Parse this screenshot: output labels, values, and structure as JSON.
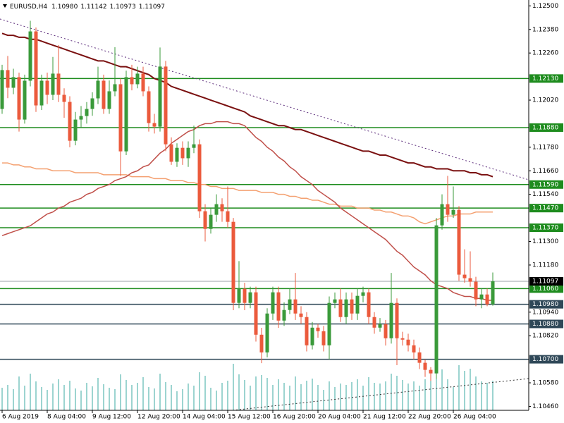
{
  "chart_data": {
    "type": "candlestick",
    "title": "EURUSD,H4",
    "title_values": [
      "1.10980",
      "1.11142",
      "1.10973",
      "1.11097"
    ],
    "categories": [
      "6 Aug 2019",
      null,
      null,
      null,
      null,
      null,
      null,
      null,
      "8 Aug 04:00",
      null,
      null,
      null,
      null,
      null,
      null,
      null,
      "9 Aug 12:00",
      null,
      null,
      null,
      null,
      null,
      null,
      null,
      "12 Aug 20:00",
      null,
      null,
      null,
      null,
      null,
      null,
      null,
      "14 Aug 04:00",
      null,
      null,
      null,
      null,
      null,
      null,
      null,
      "15 Aug 12:00",
      null,
      null,
      null,
      null,
      null,
      null,
      null,
      "16 Aug 20:00",
      null,
      null,
      null,
      null,
      null,
      null,
      null,
      "20 Aug 04:00",
      null,
      null,
      null,
      null,
      null,
      null,
      null,
      "21 Aug 12:00",
      null,
      null,
      null,
      null,
      null,
      null,
      null,
      "22 Aug 20:00",
      null,
      null,
      null,
      null,
      null,
      null,
      null,
      "26 Aug 04:00",
      null,
      null,
      null,
      null,
      null,
      null,
      null
    ],
    "open": [
      1.11975,
      1.12173,
      1.12083,
      1.12137,
      1.11921,
      1.12119,
      1.1237,
      1.11993,
      1.12119,
      1.12047,
      1.12155,
      1.12047,
      1.12011,
      1.11813,
      1.11921,
      1.11939,
      1.11975,
      1.12029,
      1.12119,
      1.11975,
      1.12065,
      1.12101,
      1.11759,
      1.12137,
      1.12101,
      1.12155,
      1.12065,
      1.11903,
      1.11885,
      1.12191,
      1.11795,
      1.11706,
      1.11777,
      1.11724,
      1.11777,
      1.11795,
      1.11454,
      1.11364,
      1.11436,
      1.1149,
      1.11454,
      1.114,
      1.10987,
      1.11059,
      1.10987,
      1.11041,
      1.10825,
      1.10735,
      1.10933,
      1.11041,
      1.10897,
      1.10951,
      1.11005,
      1.10933,
      1.10915,
      1.10771,
      1.10861,
      1.10843,
      1.10771,
      1.10987,
      1.11005,
      1.10915,
      1.11005,
      1.10933,
      1.11023,
      1.11041,
      1.10915,
      1.10861,
      1.10879,
      1.10807,
      1.10987,
      1.10807,
      1.108,
      1.10771,
      1.10735,
      1.10682,
      1.10646,
      1.10628,
      1.11382,
      1.1149,
      1.11436,
      1.11461,
      1.11131,
      1.11113,
      1.11095,
      1.11005,
      1.1103,
      1.1098
    ],
    "high": [
      1.122,
      1.12245,
      1.1218,
      1.1216,
      1.1215,
      1.12424,
      1.1239,
      1.1215,
      1.1216,
      1.1224,
      1.123,
      1.1208,
      1.1204,
      1.1196,
      1.1199,
      1.1201,
      1.1206,
      1.1219,
      1.1215,
      1.1212,
      1.1229,
      1.1213,
      1.1217,
      1.122,
      1.1219,
      1.1219,
      1.1209,
      1.1195,
      1.12288,
      1.1222,
      1.1183,
      1.118,
      1.1181,
      1.1181,
      1.1189,
      1.1182,
      1.1149,
      1.1147,
      1.1154,
      1.1152,
      1.1158,
      1.1142,
      1.112,
      1.1109,
      1.1107,
      1.1107,
      1.1086,
      1.1096,
      1.1107,
      1.1107,
      1.1099,
      1.1106,
      1.1114,
      1.1097,
      1.1094,
      1.1089,
      1.1088,
      1.1087,
      1.1102,
      1.1104,
      1.1106,
      1.1104,
      1.1104,
      1.1106,
      1.1107,
      1.1106,
      1.1094,
      1.1091,
      1.109,
      1.1114,
      1.1101,
      1.1084,
      1.1083,
      1.108,
      1.1076,
      1.107,
      1.1066,
      1.1142,
      1.1154,
      1.11634,
      1.1158,
      1.1148,
      1.1126,
      1.1125,
      1.1112,
      1.1106,
      1.1106,
      1.11142
    ],
    "low": [
      1.1195,
      1.1203,
      1.1205,
      1.1186,
      1.119,
      1.1209,
      1.1196,
      1.1197,
      1.12,
      1.1202,
      1.1201,
      1.1193,
      1.1178,
      1.1179,
      1.1188,
      1.119,
      1.1194,
      1.12,
      1.1195,
      1.1195,
      1.1204,
      1.11634,
      1.1174,
      1.1207,
      1.1208,
      1.1204,
      1.1186,
      1.1185,
      1.1186,
      1.1176,
      1.1169,
      1.1168,
      1.1169,
      1.1168,
      1.1175,
      1.1142,
      1.113,
      1.1134,
      1.114,
      1.114,
      1.1137,
      1.1095,
      1.1096,
      1.1095,
      1.1096,
      1.1079,
      1.1068,
      1.1071,
      1.109,
      1.1086,
      1.1087,
      1.1093,
      1.109,
      1.1088,
      1.1074,
      1.1075,
      1.1081,
      1.1074,
      1.107,
      1.1096,
      1.1089,
      1.1088,
      1.109,
      1.109,
      1.1099,
      1.1088,
      1.1083,
      1.1084,
      1.1077,
      1.1078,
      1.1067,
      1.1077,
      1.1074,
      1.107,
      1.1065,
      1.1061,
      1.1059,
      1.106,
      1.1136,
      1.114,
      1.1142,
      1.111,
      1.1109,
      1.1107,
      1.1097,
      1.1096,
      1.1097,
      1.10973
    ],
    "close": [
      1.12173,
      1.12083,
      1.12137,
      1.11921,
      1.12119,
      1.1237,
      1.11993,
      1.12119,
      1.12047,
      1.12155,
      1.12047,
      1.12011,
      1.11813,
      1.11921,
      1.11939,
      1.11975,
      1.12029,
      1.12119,
      1.11975,
      1.12065,
      1.12101,
      1.11759,
      1.12137,
      1.12101,
      1.12155,
      1.12065,
      1.11903,
      1.11885,
      1.12191,
      1.11795,
      1.11706,
      1.11777,
      1.11724,
      1.11777,
      1.11795,
      1.11454,
      1.11364,
      1.11436,
      1.1149,
      1.11454,
      1.114,
      1.10987,
      1.11059,
      1.10987,
      1.11041,
      1.10825,
      1.10735,
      1.10933,
      1.11041,
      1.10897,
      1.10951,
      1.11005,
      1.10933,
      1.10915,
      1.10771,
      1.10861,
      1.10843,
      1.10771,
      1.10987,
      1.11005,
      1.10915,
      1.11005,
      1.10933,
      1.11023,
      1.11041,
      1.10915,
      1.10861,
      1.10879,
      1.10807,
      1.10987,
      1.10807,
      1.108,
      1.10771,
      1.10735,
      1.10682,
      1.10646,
      1.10628,
      1.11382,
      1.1149,
      1.11436,
      1.11461,
      1.11131,
      1.11113,
      1.11095,
      1.11005,
      1.1103,
      1.1098,
      1.11097
    ],
    "up_color": "#3a9a3a",
    "down_color": "#eb5a3c",
    "volume": [
      3200,
      3600,
      3000,
      4800,
      3500,
      5200,
      4100,
      3300,
      2900,
      3800,
      4400,
      3600,
      4200,
      3100,
      2800,
      3900,
      3400,
      4600,
      3700,
      3200,
      3000,
      5100,
      4300,
      3600,
      3900,
      4700,
      3300,
      3100,
      5200,
      4000,
      3600,
      2700,
      3000,
      3800,
      3500,
      5400,
      4900,
      3200,
      2800,
      3900,
      4200,
      6600,
      5100,
      4300,
      3500,
      4800,
      5000,
      4600,
      3600,
      4400,
      3900,
      3500,
      4800,
      3700,
      4200,
      4500,
      3600,
      2900,
      4100,
      3300,
      3800,
      3600,
      4000,
      4400,
      3500,
      4700,
      3900,
      3800,
      4100,
      5200,
      4900,
      4300,
      3800,
      4100,
      3500,
      4400,
      4600,
      6200,
      5800,
      4400,
      3300,
      6400,
      5600,
      5900,
      4800,
      4100,
      3900,
      4200
    ],
    "volume_color": "#3aa8a0",
    "moving_averages": [
      {
        "color": "#7a1010",
        "values": [
          1.1236,
          1.1235,
          1.1235,
          1.1234,
          1.1234,
          1.1233,
          1.1233,
          1.1232,
          1.1231,
          1.123,
          1.1229,
          1.1228,
          1.1227,
          1.1226,
          1.1225,
          1.1224,
          1.1223,
          1.1222,
          1.1222,
          1.1221,
          1.122,
          1.1219,
          1.1219,
          1.1218,
          1.1217,
          1.1216,
          1.1215,
          1.1213,
          1.1212,
          1.1211,
          1.1209,
          1.1208,
          1.1207,
          1.1206,
          1.1205,
          1.1204,
          1.1203,
          1.1202,
          1.1201,
          1.12,
          1.1199,
          1.1198,
          1.1197,
          1.1196,
          1.1194,
          1.1193,
          1.1192,
          1.1191,
          1.119,
          1.1189,
          1.1189,
          1.1188,
          1.1187,
          1.1187,
          1.1186,
          1.1185,
          1.1184,
          1.1183,
          1.1182,
          1.1181,
          1.118,
          1.1179,
          1.1178,
          1.1177,
          1.1176,
          1.1176,
          1.1175,
          1.1174,
          1.1174,
          1.1173,
          1.1172,
          1.1171,
          1.117,
          1.117,
          1.1169,
          1.1168,
          1.1168,
          1.1167,
          1.1167,
          1.1167,
          1.1166,
          1.1166,
          1.1166,
          1.1165,
          1.1165,
          1.1164,
          1.1164,
          1.1163
        ]
      },
      {
        "color": "#f4a070",
        "values": [
          1.117,
          1.117,
          1.1169,
          1.1169,
          1.1168,
          1.1168,
          1.1167,
          1.1167,
          1.1167,
          1.1166,
          1.1166,
          1.1166,
          1.1166,
          1.1165,
          1.1165,
          1.1165,
          1.1165,
          1.1165,
          1.1164,
          1.1164,
          1.1164,
          1.1164,
          1.1164,
          1.1163,
          1.1163,
          1.1163,
          1.1163,
          1.1162,
          1.1162,
          1.1162,
          1.1161,
          1.1161,
          1.1161,
          1.116,
          1.116,
          1.1159,
          1.1159,
          1.1158,
          1.1158,
          1.1157,
          1.1157,
          1.1157,
          1.1156,
          1.1156,
          1.1156,
          1.1156,
          1.1155,
          1.1155,
          1.1155,
          1.1154,
          1.1154,
          1.1153,
          1.1153,
          1.1152,
          1.1152,
          1.1151,
          1.1151,
          1.115,
          1.1149,
          1.1149,
          1.1148,
          1.1148,
          1.1148,
          1.1147,
          1.1147,
          1.1147,
          1.1146,
          1.1146,
          1.1145,
          1.1145,
          1.1144,
          1.1143,
          1.1143,
          1.1142,
          1.114,
          1.1139,
          1.114,
          1.1141,
          1.1142,
          1.1143,
          1.1143,
          1.1144,
          1.1144,
          1.1144,
          1.1145,
          1.1145,
          1.1145,
          1.1145
        ]
      },
      {
        "color": "#c0504a",
        "values": [
          1.1133,
          1.1134,
          1.1135,
          1.1136,
          1.1137,
          1.1138,
          1.114,
          1.1142,
          1.1144,
          1.1145,
          1.1147,
          1.1148,
          1.115,
          1.1151,
          1.1152,
          1.1154,
          1.1155,
          1.1157,
          1.1158,
          1.1159,
          1.1161,
          1.1162,
          1.1163,
          1.1165,
          1.1166,
          1.1168,
          1.1169,
          1.1172,
          1.1175,
          1.1177,
          1.118,
          1.1182,
          1.1184,
          1.1186,
          1.1187,
          1.1189,
          1.119,
          1.119,
          1.1191,
          1.1191,
          1.1191,
          1.119,
          1.119,
          1.1189,
          1.1186,
          1.1183,
          1.1181,
          1.1178,
          1.1176,
          1.1173,
          1.1171,
          1.1168,
          1.1166,
          1.1163,
          1.1161,
          1.1159,
          1.1156,
          1.1154,
          1.1152,
          1.115,
          1.1147,
          1.1145,
          1.1143,
          1.1141,
          1.1139,
          1.1137,
          1.1135,
          1.1133,
          1.1131,
          1.1128,
          1.1125,
          1.1123,
          1.112,
          1.1117,
          1.1115,
          1.1113,
          1.111,
          1.1108,
          1.1107,
          1.1106,
          1.1104,
          1.1103,
          1.1102,
          1.1102,
          1.1101,
          1.1101,
          1.11,
          1.11
        ]
      }
    ],
    "trendline": {
      "color": "#5a2a7a",
      "points": [
        [
          0,
          1.1243
        ],
        [
          87,
          1.1167
        ]
      ]
    },
    "levels": [
      {
        "value": 1.1213,
        "label": "1.12130",
        "color": "#1e8c1e"
      },
      {
        "value": 1.1188,
        "label": "1.11880",
        "color": "#1e8c1e"
      },
      {
        "value": 1.1159,
        "label": "1.11590",
        "color": "#1e8c1e"
      },
      {
        "value": 1.1147,
        "label": "1.11470",
        "color": "#1e8c1e"
      },
      {
        "value": 1.1137,
        "label": "1.11370",
        "color": "#1e8c1e"
      },
      {
        "value": 1.1106,
        "label": "1.11060",
        "color": "#1e8c1e"
      },
      {
        "value": 1.1098,
        "label": "1.10980",
        "color": "#2f4858"
      },
      {
        "value": 1.1088,
        "label": "1.10880",
        "color": "#2f4858"
      },
      {
        "value": 1.107,
        "label": "1.10700",
        "color": "#2f4858"
      }
    ],
    "last_price": {
      "value": 1.11097,
      "label": "1.11097",
      "color": "#000000"
    },
    "ylim": [
      1.1044,
      1.1253
    ],
    "yticks": [
      {
        "value": 1.125,
        "label": "1.12500"
      },
      {
        "value": 1.1238,
        "label": "1.12380"
      },
      {
        "value": 1.1226,
        "label": "1.12260"
      },
      {
        "value": 1.1202,
        "label": "1.12020"
      },
      {
        "value": 1.1178,
        "label": "1.11780"
      },
      {
        "value": 1.1166,
        "label": "1.11660"
      },
      {
        "value": 1.1154,
        "label": "1.11540"
      },
      {
        "value": 1.113,
        "label": "1.11300"
      },
      {
        "value": 1.1118,
        "label": "1.11180"
      },
      {
        "value": 1.1094,
        "label": "1.10940"
      },
      {
        "value": 1.1082,
        "label": "1.10820"
      },
      {
        "value": 1.1058,
        "label": "1.10580"
      },
      {
        "value": 1.1046,
        "label": "1.10460"
      }
    ]
  }
}
